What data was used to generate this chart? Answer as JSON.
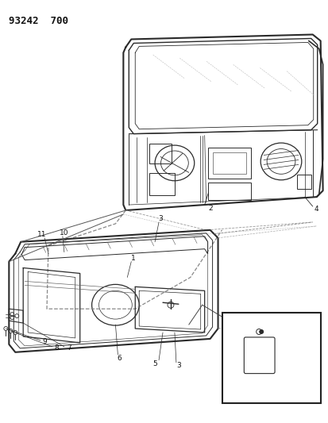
{
  "title": "93242  700",
  "bg": "#ffffff",
  "lc": "#2a2a2a",
  "fig_w": 4.14,
  "fig_h": 5.33,
  "dpi": 100
}
